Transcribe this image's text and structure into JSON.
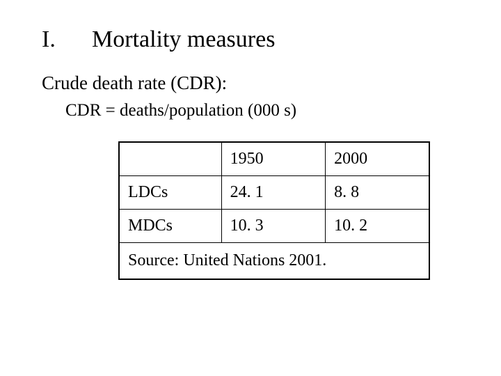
{
  "heading": {
    "number": "I.",
    "title": "Mortality measures"
  },
  "subtitle": "Crude death rate (CDR):",
  "formula": "CDR = deaths/population (000 s)",
  "table": {
    "type": "table",
    "border_color": "#000000",
    "outer_border_width": 2.5,
    "inner_border_width": 1,
    "background_color": "#ffffff",
    "text_color": "#000000",
    "cell_fontsize": 24,
    "columns": [
      "",
      "1950",
      "2000"
    ],
    "rows": [
      [
        "LDCs",
        "24. 1",
        "8. 8"
      ],
      [
        "MDCs",
        "10. 3",
        "10. 2"
      ]
    ],
    "source": "Source:  United Nations 2001."
  }
}
